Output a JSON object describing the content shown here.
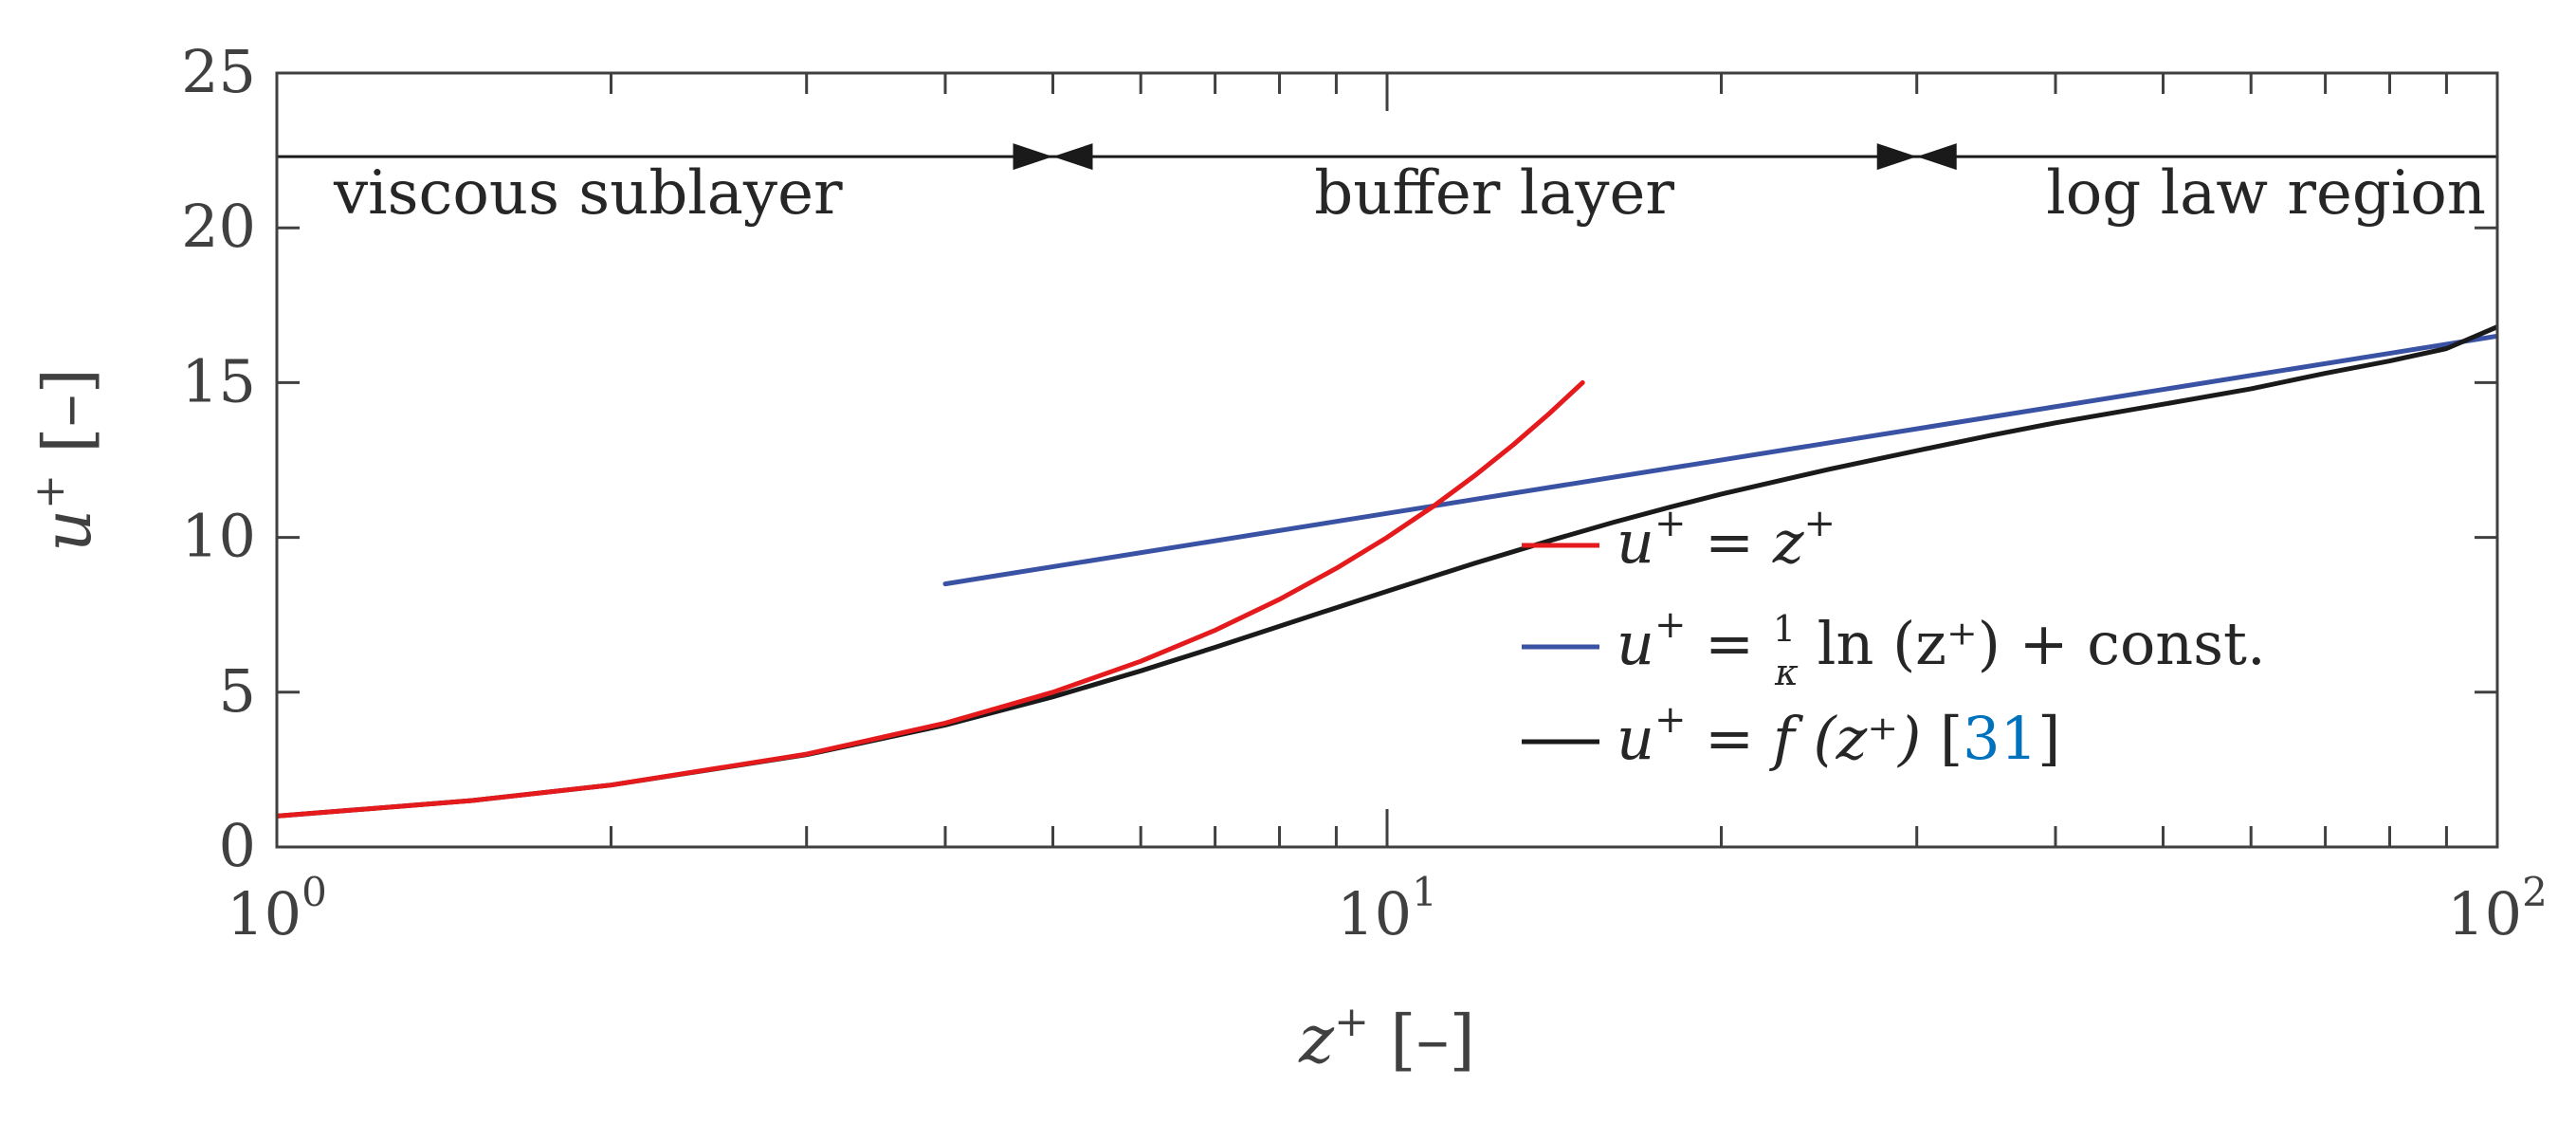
{
  "chart_data": {
    "type": "line",
    "xscale": "log",
    "xlim": [
      1,
      100
    ],
    "ylim": [
      0,
      25
    ],
    "xlabel": "z⁺ [–]",
    "ylabel": "u⁺ [–]",
    "xticks": [
      {
        "value": 1,
        "base": "10",
        "exp": "0"
      },
      {
        "value": 10,
        "base": "10",
        "exp": "1"
      },
      {
        "value": 100,
        "base": "10",
        "exp": "2"
      }
    ],
    "yticks": [
      "0",
      "5",
      "10",
      "15",
      "20",
      "25"
    ],
    "regions": [
      {
        "label": "viscous sublayer",
        "x_from": 1,
        "x_to": 5
      },
      {
        "label": "buffer layer",
        "x_from": 5,
        "x_to": 30
      },
      {
        "label": "log law region",
        "x_from": 30,
        "x_to": 100
      }
    ],
    "region_marker_y": 22.3,
    "series": [
      {
        "name": "u⁺ = z⁺",
        "color": "#e41a1c",
        "x": [
          1,
          1.5,
          2,
          3,
          4,
          5,
          6,
          7,
          8,
          9,
          10,
          11,
          12,
          13,
          14,
          15
        ],
        "y": [
          1,
          1.5,
          2,
          3,
          4,
          5,
          6,
          7,
          8,
          9,
          10,
          11,
          12,
          13,
          14,
          15
        ]
      },
      {
        "name": "u⁺ = 1/κ ln(z⁺) + const.",
        "color": "#3a52a4",
        "x": [
          4,
          100
        ],
        "y": [
          8.5,
          16.5
        ]
      },
      {
        "name": "u⁺ = f(z⁺) [31]",
        "color": "#1a1a1a",
        "x": [
          1,
          1.5,
          2,
          3,
          4,
          5,
          6,
          7,
          8,
          9,
          10,
          12,
          14,
          16,
          18,
          20,
          25,
          30,
          35,
          40,
          50,
          60,
          70,
          80,
          90,
          100
        ],
        "y": [
          1,
          1.5,
          2,
          2.98,
          3.94,
          4.85,
          5.69,
          6.45,
          7.13,
          7.73,
          8.26,
          9.17,
          9.89,
          10.49,
          10.98,
          11.4,
          12.2,
          12.8,
          13.3,
          13.7,
          14.3,
          14.8,
          15.3,
          15.7,
          16.1,
          16.8
        ]
      }
    ],
    "legend": {
      "placement": "center-right",
      "entries": [
        {
          "lhs": "u",
          "sup": "+",
          "eq": " = ",
          "rhs": "z",
          "rhs_sup": "+",
          "frac_num": "",
          "frac_den": "",
          "tail": "",
          "cite": ""
        },
        {
          "lhs": "u",
          "sup": "+",
          "eq": " = ",
          "rhs": "",
          "rhs_sup": "",
          "frac_num": "1",
          "frac_den": "κ",
          "tail": "ln (z⁺) + const.",
          "cite": ""
        },
        {
          "lhs": "u",
          "sup": "+",
          "eq": " = ",
          "rhs": "f (z⁺)",
          "rhs_sup": "",
          "frac_num": "",
          "frac_den": "",
          "tail": "",
          "cite": "31"
        }
      ]
    }
  }
}
